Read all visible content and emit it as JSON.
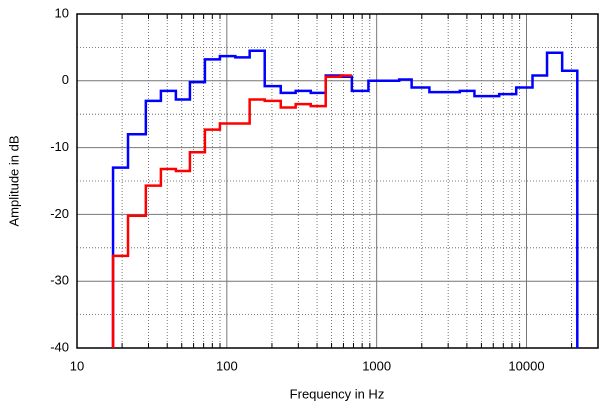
{
  "chart_data": {
    "type": "step",
    "x_label": "Frequency in Hz",
    "y_label": "Amplitude in dB",
    "xscale": "log",
    "xlim": [
      10,
      30000
    ],
    "ylim": [
      -40,
      10
    ],
    "xticks": [
      10,
      100,
      1000,
      10000
    ],
    "xminorticks": [
      20,
      30,
      40,
      50,
      60,
      70,
      80,
      90,
      200,
      300,
      400,
      500,
      600,
      700,
      800,
      900,
      2000,
      3000,
      4000,
      5000,
      6000,
      7000,
      8000,
      9000,
      20000
    ],
    "yticks": [
      -40,
      -30,
      -20,
      -10,
      0,
      10
    ],
    "yminorticks": [
      -35,
      -25,
      -15,
      -5,
      5
    ],
    "grid": true,
    "series": [
      {
        "color": "#0000ff",
        "x": [
          17.4,
          21.9,
          28.8,
          36.3,
          45.7,
          56.7,
          71.4,
          89.9,
          114,
          142,
          179,
          229,
          288,
          363,
          457,
          575,
          683,
          881,
          1413,
          1711,
          2249,
          3589,
          4492,
          6571,
          8536,
          10965,
          13709,
          17298,
          21827
        ],
        "values": [
          -13,
          -8,
          -3,
          -1.5,
          -2.8,
          -0.2,
          3.2,
          3.7,
          3.5,
          4.5,
          -0.8,
          -1.8,
          -1.5,
          -1.8,
          0.8,
          0.6,
          -1.5,
          0,
          0.2,
          -1,
          -1.7,
          -1.5,
          -2.3,
          -2,
          -1,
          0.8,
          4.2,
          1.5,
          -40
        ]
      },
      {
        "color": "#ff0000",
        "x": [
          17.4,
          21.9,
          28.8,
          36.3,
          45.7,
          56.7,
          71.4,
          89.9,
          142,
          179,
          229,
          288,
          363,
          457,
          575,
          683
        ],
        "values": [
          -26.2,
          -20.2,
          -15.7,
          -13.2,
          -13.5,
          -10.7,
          -7.3,
          -6.4,
          -2.8,
          -3,
          -4,
          -3.5,
          -3.8,
          0.6,
          0.8,
          0.8
        ]
      }
    ]
  }
}
